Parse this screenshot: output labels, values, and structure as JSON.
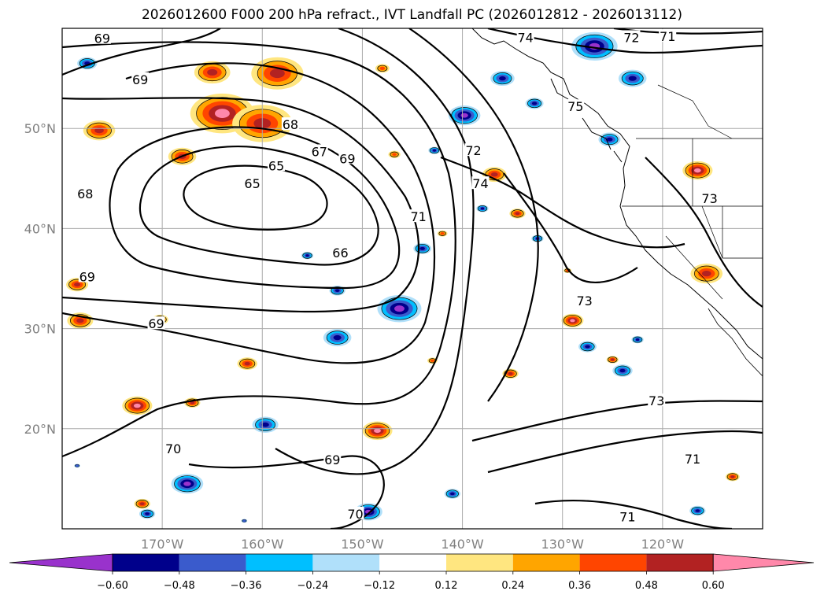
{
  "title": "2026012600 F000 200 hPa refract., IVT Landfall PC (2026012812 - 2026013112)",
  "map": {
    "lat_ticks": [
      {
        "value": 50,
        "label": "50°N"
      },
      {
        "value": 40,
        "label": "40°N"
      },
      {
        "value": 30,
        "label": "30°N"
      },
      {
        "value": 20,
        "label": "20°N"
      }
    ],
    "lon_ticks": [
      {
        "value": -170,
        "label": "170°W"
      },
      {
        "value": -160,
        "label": "160°W"
      },
      {
        "value": -150,
        "label": "150°W"
      },
      {
        "value": -140,
        "label": "140°W"
      },
      {
        "value": -130,
        "label": "130°W"
      },
      {
        "value": -120,
        "label": "120°W"
      }
    ],
    "extent": {
      "lon_min": -180,
      "lon_max": -110,
      "lat_min": 10,
      "lat_max": 60
    },
    "contour_labels": [
      {
        "text": "69",
        "lon": -176,
        "lat": 59
      },
      {
        "text": "69",
        "lon": -172.2,
        "lat": 54.9
      },
      {
        "text": "68",
        "lon": -157.2,
        "lat": 50.4
      },
      {
        "text": "67",
        "lon": -154.3,
        "lat": 47.7
      },
      {
        "text": "69",
        "lon": -151.5,
        "lat": 47.0
      },
      {
        "text": "65",
        "lon": -158.6,
        "lat": 46.3
      },
      {
        "text": "65",
        "lon": -161,
        "lat": 44.5
      },
      {
        "text": "68",
        "lon": -177.7,
        "lat": 43.5
      },
      {
        "text": "72",
        "lon": -138.9,
        "lat": 47.8
      },
      {
        "text": "74",
        "lon": -138.2,
        "lat": 44.5
      },
      {
        "text": "71",
        "lon": -144.4,
        "lat": 41.2
      },
      {
        "text": "66",
        "lon": -152.2,
        "lat": 37.6
      },
      {
        "text": "69",
        "lon": -177.5,
        "lat": 35.2
      },
      {
        "text": "73",
        "lon": -127.8,
        "lat": 32.8
      },
      {
        "text": "69",
        "lon": -170.6,
        "lat": 30.5
      },
      {
        "text": "73",
        "lon": -120.6,
        "lat": 22.8
      },
      {
        "text": "70",
        "lon": -168.9,
        "lat": 18.0
      },
      {
        "text": "69",
        "lon": -153,
        "lat": 16.9
      },
      {
        "text": "71",
        "lon": -117.0,
        "lat": 17.0
      },
      {
        "text": "70",
        "lon": -150.7,
        "lat": 11.5
      },
      {
        "text": "71",
        "lon": -123.5,
        "lat": 11.2
      },
      {
        "text": "74",
        "lon": -133.7,
        "lat": 59.1
      },
      {
        "text": "72",
        "lon": -123.1,
        "lat": 59.1
      },
      {
        "text": "71",
        "lon": -119.5,
        "lat": 59.2
      },
      {
        "text": "73",
        "lon": -115.3,
        "lat": 43.0
      },
      {
        "text": "75",
        "lon": -128.7,
        "lat": 52.2
      }
    ],
    "blobs_positive": [
      {
        "lon": -164,
        "lat": 51.5,
        "r": 3.2,
        "level": 4
      },
      {
        "lon": -160,
        "lat": 50.5,
        "r": 3,
        "level": 3
      },
      {
        "lon": -158.5,
        "lat": 55.5,
        "r": 2.6,
        "level": 3
      },
      {
        "lon": -165,
        "lat": 55.6,
        "r": 1.8,
        "level": 3
      },
      {
        "lon": -176.3,
        "lat": 49.8,
        "r": 1.6,
        "level": 3
      },
      {
        "lon": -168,
        "lat": 47.2,
        "r": 1.4,
        "level": 3
      },
      {
        "lon": -148,
        "lat": 56,
        "r": 0.7,
        "level": 2
      },
      {
        "lon": -146.8,
        "lat": 47.4,
        "r": 0.6,
        "level": 2
      },
      {
        "lon": -136.8,
        "lat": 45.4,
        "r": 1.2,
        "level": 3
      },
      {
        "lon": -134.5,
        "lat": 41.5,
        "r": 0.8,
        "level": 3
      },
      {
        "lon": -116.5,
        "lat": 45.8,
        "r": 1.5,
        "level": 4
      },
      {
        "lon": -115.6,
        "lat": 35.5,
        "r": 1.6,
        "level": 3
      },
      {
        "lon": -178.5,
        "lat": 34.4,
        "r": 1.1,
        "level": 3
      },
      {
        "lon": -178.2,
        "lat": 30.8,
        "r": 1.3,
        "level": 3
      },
      {
        "lon": -170.2,
        "lat": 30.9,
        "r": 0.8,
        "level": 3
      },
      {
        "lon": -161.5,
        "lat": 26.5,
        "r": 1,
        "level": 3
      },
      {
        "lon": -172.5,
        "lat": 22.3,
        "r": 1.5,
        "level": 4
      },
      {
        "lon": -167,
        "lat": 22.6,
        "r": 0.8,
        "level": 3
      },
      {
        "lon": -148.5,
        "lat": 19.8,
        "r": 1.5,
        "level": 4
      },
      {
        "lon": -172,
        "lat": 12.5,
        "r": 0.8,
        "level": 3
      },
      {
        "lon": -129,
        "lat": 30.8,
        "r": 1.1,
        "level": 4
      },
      {
        "lon": -143,
        "lat": 26.8,
        "r": 0.5,
        "level": 2
      },
      {
        "lon": -135.2,
        "lat": 25.5,
        "r": 0.8,
        "level": 3
      },
      {
        "lon": -142,
        "lat": 39.5,
        "r": 0.5,
        "level": 2
      },
      {
        "lon": -125,
        "lat": 26.9,
        "r": 0.6,
        "level": 3
      },
      {
        "lon": -113,
        "lat": 15.2,
        "r": 0.7,
        "level": 3
      },
      {
        "lon": -129.5,
        "lat": 35.8,
        "r": 0.4,
        "level": 2
      }
    ],
    "blobs_negative": [
      {
        "lon": -177.5,
        "lat": 56.5,
        "r": 1,
        "level": 3
      },
      {
        "lon": -139.8,
        "lat": 51.3,
        "r": 1.6,
        "level": 4
      },
      {
        "lon": -142.8,
        "lat": 47.8,
        "r": 0.6,
        "level": 3
      },
      {
        "lon": -136,
        "lat": 55.0,
        "r": 1.2,
        "level": 3
      },
      {
        "lon": -132.8,
        "lat": 52.5,
        "r": 0.9,
        "level": 3
      },
      {
        "lon": -126.8,
        "lat": 58.2,
        "r": 2.3,
        "level": 4
      },
      {
        "lon": -123,
        "lat": 55,
        "r": 1.4,
        "level": 3
      },
      {
        "lon": -125.3,
        "lat": 48.9,
        "r": 1.1,
        "level": 3
      },
      {
        "lon": -146.3,
        "lat": 32,
        "r": 2.2,
        "level": 4
      },
      {
        "lon": -152.5,
        "lat": 29.1,
        "r": 1.4,
        "level": 3
      },
      {
        "lon": -144,
        "lat": 38,
        "r": 0.9,
        "level": 3
      },
      {
        "lon": -138,
        "lat": 42,
        "r": 0.6,
        "level": 3
      },
      {
        "lon": -132.5,
        "lat": 39,
        "r": 0.6,
        "level": 3
      },
      {
        "lon": -155.5,
        "lat": 37.3,
        "r": 0.6,
        "level": 3
      },
      {
        "lon": -152.5,
        "lat": 33.8,
        "r": 0.8,
        "level": 3
      },
      {
        "lon": -159.7,
        "lat": 20.4,
        "r": 1.3,
        "level": 3
      },
      {
        "lon": -167.5,
        "lat": 14.5,
        "r": 1.6,
        "level": 4
      },
      {
        "lon": -171.5,
        "lat": 11.5,
        "r": 0.8,
        "level": 3
      },
      {
        "lon": -149.4,
        "lat": 11.7,
        "r": 1.4,
        "level": 4
      },
      {
        "lon": -141,
        "lat": 13.5,
        "r": 0.8,
        "level": 3
      },
      {
        "lon": -124,
        "lat": 25.8,
        "r": 1,
        "level": 3
      },
      {
        "lon": -127.5,
        "lat": 28.2,
        "r": 0.9,
        "level": 3
      },
      {
        "lon": -122.5,
        "lat": 28.9,
        "r": 0.6,
        "level": 3
      },
      {
        "lon": -116.5,
        "lat": 11.8,
        "r": 0.8,
        "level": 3
      },
      {
        "lon": -161.8,
        "lat": 10.8,
        "r": 0.3,
        "level": 2
      },
      {
        "lon": -178.5,
        "lat": 16.3,
        "r": 0.3,
        "level": 2
      }
    ]
  },
  "colorbar": {
    "levels": [
      "−0.60",
      "−0.48",
      "−0.36",
      "−0.24",
      "−0.12",
      "0.12",
      "0.24",
      "0.36",
      "0.48",
      "0.60"
    ],
    "colors": [
      "#9932cc",
      "#00008b",
      "#3a5bcc",
      "#00bfff",
      "#b0e0fa",
      "#ffffff",
      "#ffe680",
      "#ffa500",
      "#ff4500",
      "#b22222",
      "#ff88aa"
    ]
  }
}
